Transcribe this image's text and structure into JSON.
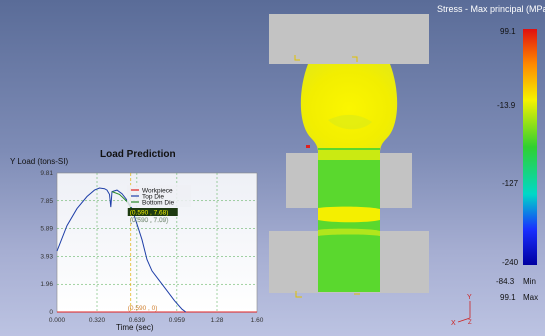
{
  "legend": {
    "title": "Stress - Max principal (MPa)",
    "ticks": [
      "99.1",
      "-13.9",
      "-127",
      "-240"
    ],
    "min_value": "-84.3",
    "min_label": "Min",
    "max_value": "99.1",
    "max_label": "Max"
  },
  "colors": {
    "die_gray": "#c3c3c3",
    "workpiece_yellow": "#f6f200",
    "workpiece_green": "#5ad82e",
    "curve_blue": "#1f3fa8",
    "workpiece_red": "#e02020"
  },
  "triad": {
    "x": "X",
    "y": "Y",
    "z": "Z"
  },
  "chart_data": {
    "type": "line",
    "title": "Load Prediction",
    "ylabel": "Y Load (tons-SI)",
    "xlabel": "Time (sec)",
    "xlim": [
      0,
      1.6
    ],
    "ylim": [
      0,
      9.81
    ],
    "x_ticks": [
      "0.000",
      "0.320",
      "0.639",
      "0.959",
      "1.28",
      "1.60"
    ],
    "y_ticks": [
      "9.81",
      "7.85",
      "5.89",
      "3.93",
      "1.96",
      "0"
    ],
    "x_tick_values": [
      0,
      0.32,
      0.639,
      0.959,
      1.28,
      1.6
    ],
    "y_tick_values": [
      9.81,
      7.85,
      5.89,
      3.93,
      1.96,
      0
    ],
    "grid": true,
    "legend_position": "top-right",
    "series": [
      {
        "name": "Workpiece",
        "color": "#e02020",
        "points": [
          [
            0,
            0
          ],
          [
            1.6,
            0
          ]
        ]
      },
      {
        "name": "Top Die",
        "color": "#1f3fa8",
        "points": [
          [
            0,
            4.3
          ],
          [
            0.08,
            6.1
          ],
          [
            0.16,
            7.3
          ],
          [
            0.24,
            8.15
          ],
          [
            0.3,
            8.6
          ],
          [
            0.34,
            8.75
          ],
          [
            0.38,
            8.7
          ],
          [
            0.4,
            8.6
          ],
          [
            0.42,
            8.3
          ],
          [
            0.43,
            7.4
          ],
          [
            0.44,
            8.5
          ],
          [
            0.48,
            8.6
          ],
          [
            0.52,
            8.35
          ],
          [
            0.56,
            7.9
          ],
          [
            0.6,
            7.3
          ],
          [
            0.64,
            6.2
          ],
          [
            0.68,
            5.1
          ],
          [
            0.72,
            3.7
          ],
          [
            0.76,
            2.9
          ],
          [
            0.82,
            2.2
          ],
          [
            0.88,
            1.5
          ],
          [
            0.94,
            0.8
          ],
          [
            1.0,
            0.2
          ],
          [
            1.03,
            0
          ]
        ]
      },
      {
        "name": "Bottom Die",
        "color": "#2a8a2a",
        "points": [
          [
            0.44,
            8.5
          ],
          [
            0.5,
            8.3
          ],
          [
            0.56,
            7.8
          ],
          [
            0.6,
            7.2
          ]
        ]
      }
    ],
    "cursor": {
      "x_value": 0.59,
      "readout_top": "(0.590 , 7.68)",
      "readout_mid": "(0.590 , 7.09)",
      "readout_bottom": "(0.590 , 0)"
    }
  }
}
